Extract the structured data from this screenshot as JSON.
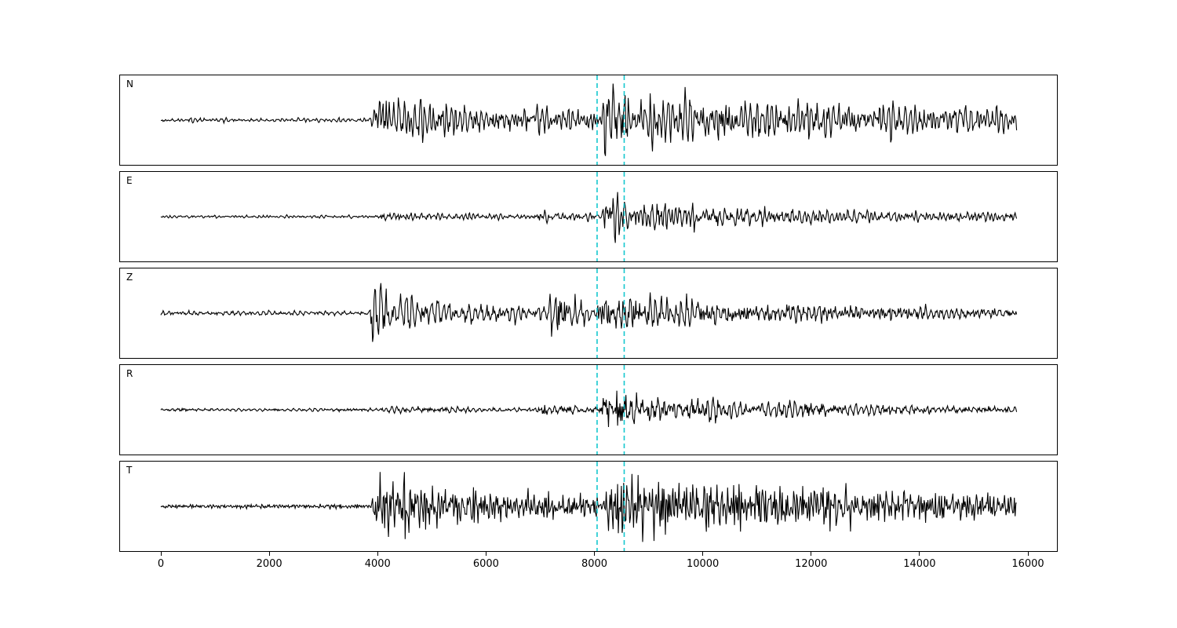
{
  "figure": {
    "background": "#ffffff",
    "frame_color": "#000000",
    "trace_color": "#000000"
  },
  "chart_data": {
    "type": "line",
    "subtype": "seismogram-multipanel",
    "title": "",
    "xlabel": "",
    "ylabel": "",
    "grid": false,
    "legend": "none",
    "xlim": [
      -770,
      16600
    ],
    "x_ticks": [
      0,
      2000,
      4000,
      6000,
      8000,
      10000,
      12000,
      14000,
      16000
    ],
    "trace_x_range": [
      0,
      15800
    ],
    "marker_lines": {
      "x": [
        8050,
        8550
      ],
      "color": "#14c7ce",
      "style": "dashed"
    },
    "noise_seed": 42,
    "sample_step": 14,
    "channels": [
      {
        "label": "N",
        "base_amp": 0.05,
        "bursts": [
          {
            "t0": 3870,
            "amp": 0.55,
            "decay": 900
          },
          {
            "t0": 3950,
            "amp": 0.3,
            "decay": 9000
          },
          {
            "t0": 8130,
            "amp": 1.05,
            "decay": 160
          },
          {
            "t0": 8300,
            "amp": 0.42,
            "decay": 9000
          }
        ]
      },
      {
        "label": "E",
        "base_amp": 0.035,
        "bursts": [
          {
            "t0": 4000,
            "amp": 0.08,
            "decay": 3000
          },
          {
            "t0": 6950,
            "amp": 0.1,
            "decay": 800
          },
          {
            "t0": 8130,
            "amp": 1.05,
            "decay": 150
          },
          {
            "t0": 8280,
            "amp": 0.3,
            "decay": 2500
          },
          {
            "t0": 9000,
            "amp": 0.12,
            "decay": 8000
          }
        ]
      },
      {
        "label": "Z",
        "base_amp": 0.05,
        "bursts": [
          {
            "t0": 3850,
            "amp": 1.1,
            "decay": 130
          },
          {
            "t0": 3950,
            "amp": 0.4,
            "decay": 2500
          },
          {
            "t0": 7150,
            "amp": 0.45,
            "decay": 250
          },
          {
            "t0": 7250,
            "amp": 0.18,
            "decay": 4000
          },
          {
            "t0": 8100,
            "amp": 0.22,
            "decay": 6000
          }
        ]
      },
      {
        "label": "R",
        "base_amp": 0.035,
        "bursts": [
          {
            "t0": 4050,
            "amp": 0.06,
            "decay": 3000
          },
          {
            "t0": 7000,
            "amp": 0.1,
            "decay": 1500
          },
          {
            "t0": 8140,
            "amp": 1.05,
            "decay": 150
          },
          {
            "t0": 8280,
            "amp": 0.28,
            "decay": 2200
          },
          {
            "t0": 9200,
            "amp": 0.1,
            "decay": 8000
          }
        ]
      },
      {
        "label": "T",
        "base_amp": 0.05,
        "bursts": [
          {
            "t0": 3880,
            "amp": 0.5,
            "decay": 1200
          },
          {
            "t0": 3960,
            "amp": 0.32,
            "decay": 9000
          },
          {
            "t0": 8200,
            "amp": 1.05,
            "decay": 170
          },
          {
            "t0": 8350,
            "amp": 0.45,
            "decay": 9000
          }
        ]
      }
    ]
  }
}
